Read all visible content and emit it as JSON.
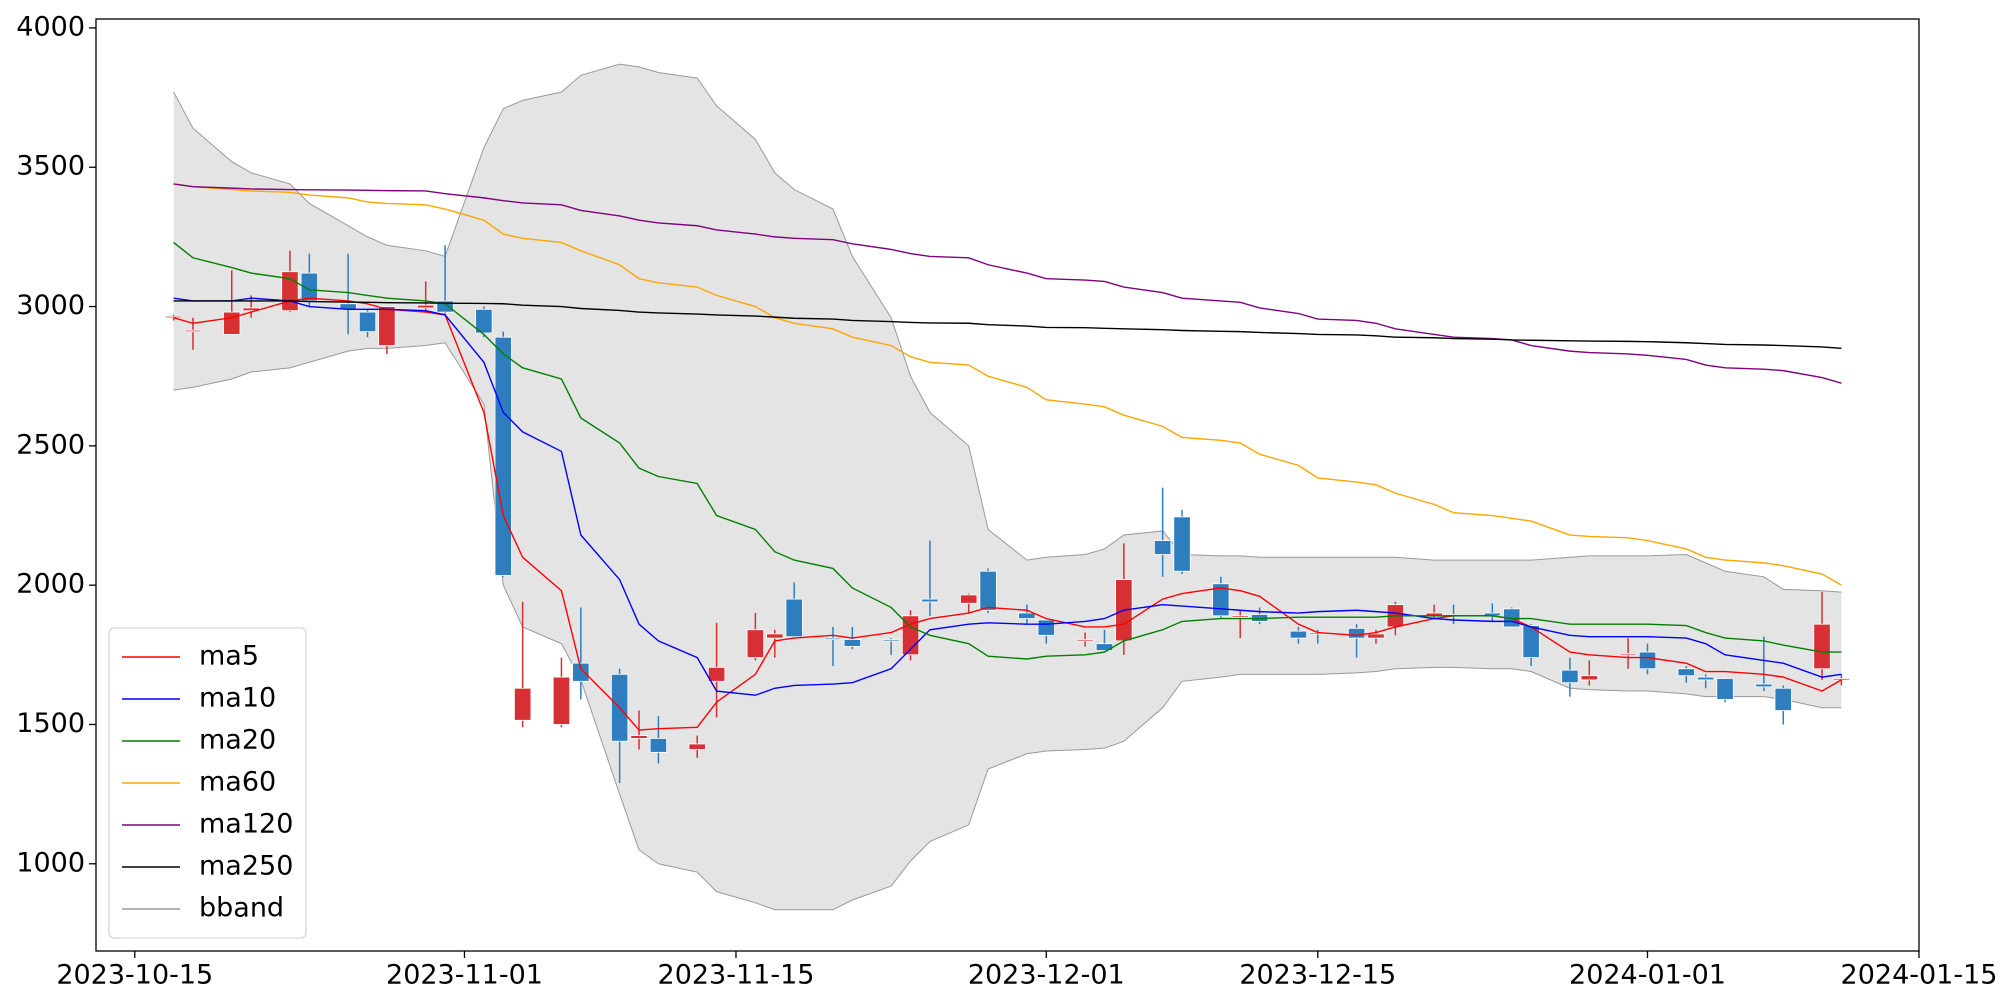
{
  "chart_data": {
    "type": "candlestick",
    "x": [
      "2023-10-17",
      "2023-10-18",
      "2023-10-20",
      "2023-10-21",
      "2023-10-23",
      "2023-10-24",
      "2023-10-26",
      "2023-10-27",
      "2023-10-28",
      "2023-10-30",
      "2023-10-31",
      "2023-11-02",
      "2023-11-03",
      "2023-11-04",
      "2023-11-06",
      "2023-11-07",
      "2023-11-09",
      "2023-11-10",
      "2023-11-11",
      "2023-11-13",
      "2023-11-14",
      "2023-11-16",
      "2023-11-17",
      "2023-11-18",
      "2023-11-20",
      "2023-11-21",
      "2023-11-23",
      "2023-11-24",
      "2023-11-25",
      "2023-11-27",
      "2023-11-28",
      "2023-11-30",
      "2023-12-01",
      "2023-12-03",
      "2023-12-04",
      "2023-12-05",
      "2023-12-07",
      "2023-12-08",
      "2023-12-10",
      "2023-12-11",
      "2023-12-12",
      "2023-12-14",
      "2023-12-15",
      "2023-12-17",
      "2023-12-18",
      "2023-12-19",
      "2023-12-21",
      "2023-12-22",
      "2023-12-24",
      "2023-12-25",
      "2023-12-26",
      "2023-12-28",
      "2023-12-29",
      "2023-12-31",
      "2024-01-01",
      "2024-01-03",
      "2024-01-04",
      "2024-01-05",
      "2024-01-07",
      "2024-01-08",
      "2024-01-10",
      "2024-01-11"
    ],
    "open": [
      2960,
      2910,
      2900,
      2985,
      2985,
      3120,
      3010,
      2980,
      2860,
      2995,
      3020,
      2990,
      2890,
      1515,
      1500,
      1720,
      1680,
      1450,
      1450,
      1410,
      1655,
      1740,
      1810,
      1950,
      1810,
      1805,
      1805,
      1750,
      1950,
      1935,
      2050,
      1900,
      1875,
      1800,
      1790,
      1800,
      2160,
      2245,
      2005,
      1885,
      1895,
      1835,
      1830,
      1845,
      1810,
      1850,
      1890,
      1895,
      1900,
      1915,
      1855,
      1695,
      1660,
      1750,
      1760,
      1700,
      1670,
      1665,
      1645,
      1630,
      1700,
      1660
    ],
    "high": [
      2970,
      2960,
      3130,
      3040,
      3200,
      3190,
      3190,
      2990,
      3000,
      3090,
      3220,
      3000,
      2910,
      1940,
      1740,
      1920,
      1700,
      1550,
      1530,
      1460,
      1865,
      1900,
      1840,
      2010,
      1850,
      1850,
      1810,
      1910,
      2160,
      1970,
      2060,
      1930,
      1875,
      1830,
      1840,
      2150,
      2350,
      2270,
      2030,
      1910,
      1920,
      1850,
      1840,
      1860,
      1840,
      1940,
      1930,
      1930,
      1935,
      1920,
      1860,
      1740,
      1730,
      1810,
      1790,
      1710,
      1680,
      1665,
      1815,
      1640,
      1975,
      1680
    ],
    "low": [
      2950,
      2845,
      2900,
      2960,
      2980,
      3000,
      2900,
      2890,
      2830,
      2980,
      2970,
      2890,
      2030,
      1490,
      1490,
      1590,
      1290,
      1410,
      1360,
      1380,
      1525,
      1730,
      1740,
      1810,
      1710,
      1770,
      1750,
      1730,
      1890,
      1900,
      1900,
      1860,
      1790,
      1780,
      1760,
      1750,
      2030,
      2040,
      1880,
      1810,
      1860,
      1790,
      1790,
      1740,
      1790,
      1820,
      1880,
      1860,
      1870,
      1850,
      1710,
      1600,
      1640,
      1700,
      1680,
      1650,
      1630,
      1580,
      1620,
      1500,
      1660,
      1640
    ],
    "close": [
      2965,
      2915,
      2980,
      2995,
      3125,
      3020,
      2990,
      2910,
      3000,
      3005,
      2980,
      2905,
      2035,
      1630,
      1670,
      1655,
      1440,
      1460,
      1400,
      1430,
      1705,
      1840,
      1825,
      1815,
      1805,
      1780,
      1800,
      1890,
      1940,
      1965,
      1910,
      1880,
      1820,
      1805,
      1765,
      2020,
      2110,
      2050,
      1890,
      1890,
      1870,
      1810,
      1825,
      1810,
      1825,
      1930,
      1900,
      1890,
      1890,
      1850,
      1740,
      1650,
      1675,
      1755,
      1700,
      1675,
      1660,
      1590,
      1635,
      1550,
      1860,
      1665
    ],
    "up_color": "#d62f34",
    "down_color": "#2e7ebf",
    "series": [
      {
        "name": "ma5",
        "color": "#ff0000",
        "values": [
          2960,
          2940,
          2960,
          2980,
          3020,
          3030,
          3020,
          3010,
          2990,
          2980,
          2970,
          2620,
          2250,
          2100,
          1980,
          1700,
          1560,
          1480,
          1485,
          1490,
          1580,
          1680,
          1800,
          1810,
          1820,
          1810,
          1830,
          1860,
          1880,
          1900,
          1920,
          1910,
          1880,
          1850,
          1850,
          1860,
          1950,
          1970,
          1990,
          1980,
          1960,
          1860,
          1830,
          1820,
          1830,
          1850,
          1880,
          1890,
          1890,
          1880,
          1850,
          1760,
          1750,
          1740,
          1740,
          1720,
          1690,
          1690,
          1680,
          1670,
          1620,
          1660
        ]
      },
      {
        "name": "ma10",
        "color": "#0000ff",
        "values": [
          3030,
          3020,
          3020,
          3030,
          3020,
          3000,
          2990,
          2990,
          2990,
          2985,
          2970,
          2800,
          2620,
          2550,
          2480,
          2180,
          2020,
          1860,
          1800,
          1740,
          1620,
          1605,
          1630,
          1640,
          1645,
          1650,
          1700,
          1770,
          1840,
          1860,
          1865,
          1860,
          1860,
          1870,
          1880,
          1910,
          1930,
          1925,
          1915,
          1910,
          1905,
          1900,
          1905,
          1910,
          1905,
          1900,
          1880,
          1875,
          1870,
          1870,
          1850,
          1820,
          1815,
          1815,
          1815,
          1810,
          1790,
          1750,
          1730,
          1720,
          1670,
          1680
        ]
      },
      {
        "name": "ma20",
        "color": "#008000",
        "values": [
          3230,
          3175,
          3140,
          3120,
          3100,
          3060,
          3050,
          3040,
          3030,
          3020,
          3010,
          2900,
          2830,
          2780,
          2740,
          2600,
          2510,
          2420,
          2390,
          2365,
          2250,
          2200,
          2120,
          2090,
          2060,
          1990,
          1920,
          1850,
          1820,
          1790,
          1745,
          1735,
          1745,
          1750,
          1760,
          1800,
          1840,
          1870,
          1880,
          1880,
          1880,
          1885,
          1885,
          1885,
          1885,
          1890,
          1890,
          1890,
          1890,
          1880,
          1880,
          1860,
          1860,
          1860,
          1860,
          1855,
          1830,
          1810,
          1800,
          1785,
          1760,
          1760
        ]
      },
      {
        "name": "ma60",
        "color": "#ffa500",
        "values": [
          3440,
          3430,
          3420,
          3415,
          3410,
          3400,
          3390,
          3375,
          3370,
          3365,
          3350,
          3310,
          3260,
          3245,
          3230,
          3200,
          3150,
          3100,
          3085,
          3070,
          3040,
          3000,
          2960,
          2940,
          2920,
          2890,
          2860,
          2820,
          2800,
          2790,
          2750,
          2710,
          2665,
          2650,
          2640,
          2610,
          2570,
          2530,
          2520,
          2510,
          2470,
          2430,
          2385,
          2370,
          2360,
          2330,
          2290,
          2260,
          2250,
          2240,
          2230,
          2180,
          2175,
          2170,
          2160,
          2130,
          2100,
          2090,
          2080,
          2070,
          2040,
          2000
        ]
      },
      {
        "name": "ma120",
        "color": "#800080",
        "values": [
          3440,
          3430,
          3425,
          3422,
          3420,
          3419,
          3418,
          3417,
          3416,
          3415,
          3405,
          3390,
          3380,
          3372,
          3365,
          3345,
          3325,
          3310,
          3300,
          3290,
          3275,
          3260,
          3250,
          3245,
          3240,
          3225,
          3205,
          3190,
          3180,
          3175,
          3150,
          3120,
          3100,
          3095,
          3090,
          3070,
          3050,
          3030,
          3020,
          3015,
          2995,
          2975,
          2955,
          2950,
          2940,
          2920,
          2900,
          2890,
          2885,
          2880,
          2860,
          2840,
          2835,
          2830,
          2825,
          2810,
          2790,
          2780,
          2775,
          2770,
          2745,
          2725
        ]
      },
      {
        "name": "ma250",
        "color": "#000000",
        "values": [
          3020,
          3020,
          3020,
          3020,
          3020,
          3018,
          3016,
          3015,
          3014,
          3013,
          3012,
          3011,
          3010,
          3005,
          3000,
          2993,
          2986,
          2980,
          2977,
          2973,
          2970,
          2966,
          2962,
          2958,
          2955,
          2950,
          2946,
          2943,
          2941,
          2940,
          2935,
          2930,
          2925,
          2924,
          2922,
          2920,
          2917,
          2914,
          2911,
          2910,
          2907,
          2903,
          2900,
          2898,
          2895,
          2890,
          2888,
          2885,
          2883,
          2880,
          2879,
          2877,
          2876,
          2875,
          2874,
          2870,
          2867,
          2864,
          2862,
          2860,
          2855,
          2850
        ]
      }
    ],
    "band": {
      "name": "bband",
      "color": "#999999",
      "fill": "#e4e4e4",
      "upper": [
        3770,
        3640,
        3520,
        3480,
        3440,
        3370,
        3290,
        3250,
        3220,
        3200,
        3180,
        3570,
        3710,
        3740,
        3770,
        3830,
        3870,
        3860,
        3840,
        3820,
        3720,
        3600,
        3480,
        3420,
        3350,
        3180,
        2960,
        2750,
        2620,
        2500,
        2200,
        2090,
        2100,
        2110,
        2130,
        2180,
        2195,
        2110,
        2105,
        2105,
        2100,
        2100,
        2100,
        2100,
        2100,
        2100,
        2090,
        2090,
        2090,
        2090,
        2090,
        2100,
        2105,
        2105,
        2105,
        2110,
        2080,
        2050,
        2030,
        1985,
        1980,
        1975
      ],
      "lower": [
        2700,
        2710,
        2740,
        2765,
        2780,
        2800,
        2840,
        2850,
        2850,
        2860,
        2870,
        2650,
        2000,
        1850,
        1790,
        1660,
        1250,
        1050,
        1000,
        970,
        900,
        860,
        835,
        835,
        835,
        870,
        920,
        1010,
        1080,
        1140,
        1340,
        1395,
        1405,
        1410,
        1415,
        1440,
        1560,
        1655,
        1670,
        1680,
        1680,
        1680,
        1680,
        1685,
        1690,
        1700,
        1705,
        1705,
        1700,
        1700,
        1690,
        1630,
        1625,
        1620,
        1620,
        1610,
        1600,
        1600,
        1600,
        1590,
        1560,
        1560
      ]
    },
    "xlim": [
      "2023-10-13",
      "2024-01-15"
    ],
    "xticks": [
      "2023-10-15",
      "2023-11-01",
      "2023-11-15",
      "2023-12-01",
      "2023-12-15",
      "2024-01-01",
      "2024-01-15"
    ],
    "ylim": [
      687,
      4032
    ],
    "yticks": [
      1000,
      1500,
      2000,
      2500,
      3000,
      3500,
      4000
    ],
    "legend": "lower left"
  }
}
